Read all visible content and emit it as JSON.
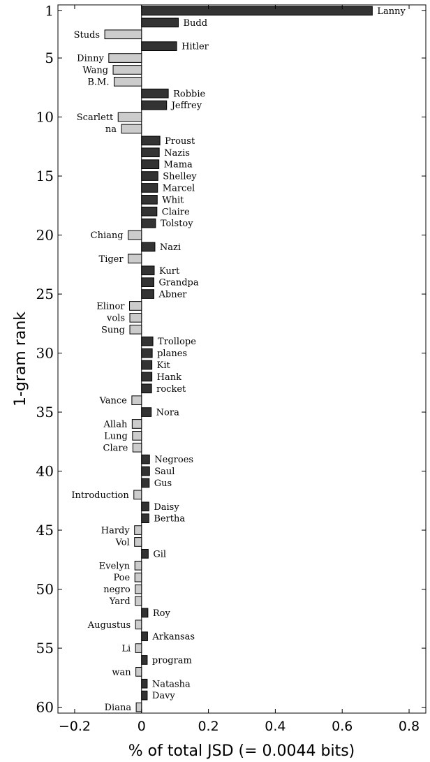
{
  "chart_data": {
    "type": "bar",
    "orientation": "horizontal",
    "xlabel": "% of total JSD (= 0.0044 bits)",
    "ylabel": "1-gram rank",
    "xlim": [
      -0.25,
      0.85
    ],
    "ylim": [
      0.5,
      60.5
    ],
    "x_ticks": [
      -0.2,
      0,
      0.2,
      0.4,
      0.6,
      0.8
    ],
    "x_tick_labels": [
      "−0.2",
      "0",
      "0.2",
      "0.4",
      "0.6",
      "0.8"
    ],
    "y_ticks": [
      1,
      5,
      10,
      15,
      20,
      25,
      30,
      35,
      40,
      45,
      50,
      55,
      60
    ],
    "y_tick_labels": [
      "1",
      "5",
      "10",
      "15",
      "20",
      "25",
      "30",
      "35",
      "40",
      "45",
      "50",
      "55",
      "60"
    ],
    "grid": false,
    "colors": {
      "positive": "#333333",
      "negative": "#cccccc",
      "edge": "#000000"
    },
    "bars": [
      {
        "rank": 1,
        "label": "Lanny",
        "value": 0.69
      },
      {
        "rank": 2,
        "label": "Budd",
        "value": 0.11
      },
      {
        "rank": 3,
        "label": "Studs",
        "value": -0.11
      },
      {
        "rank": 4,
        "label": "Hitler",
        "value": 0.105
      },
      {
        "rank": 5,
        "label": "Dinny",
        "value": -0.098
      },
      {
        "rank": 6,
        "label": "Wang",
        "value": -0.085
      },
      {
        "rank": 7,
        "label": "B.M.",
        "value": -0.082
      },
      {
        "rank": 8,
        "label": "Robbie",
        "value": 0.08
      },
      {
        "rank": 9,
        "label": "Jeffrey",
        "value": 0.075
      },
      {
        "rank": 10,
        "label": "Scarlett",
        "value": -0.07
      },
      {
        "rank": 11,
        "label": "na",
        "value": -0.06
      },
      {
        "rank": 12,
        "label": "Proust",
        "value": 0.055
      },
      {
        "rank": 13,
        "label": "Nazis",
        "value": 0.053
      },
      {
        "rank": 14,
        "label": "Mama",
        "value": 0.052
      },
      {
        "rank": 15,
        "label": "Shelley",
        "value": 0.049
      },
      {
        "rank": 16,
        "label": "Marcel",
        "value": 0.048
      },
      {
        "rank": 17,
        "label": "Whit",
        "value": 0.047
      },
      {
        "rank": 18,
        "label": "Claire",
        "value": 0.046
      },
      {
        "rank": 19,
        "label": "Tolstoy",
        "value": 0.042
      },
      {
        "rank": 20,
        "label": "Chiang",
        "value": -0.04
      },
      {
        "rank": 21,
        "label": "Nazi",
        "value": 0.04
      },
      {
        "rank": 22,
        "label": "Tiger",
        "value": -0.04
      },
      {
        "rank": 23,
        "label": "Kurt",
        "value": 0.038
      },
      {
        "rank": 24,
        "label": "Grandpa",
        "value": 0.037
      },
      {
        "rank": 25,
        "label": "Abner",
        "value": 0.037
      },
      {
        "rank": 26,
        "label": "Elinor",
        "value": -0.036
      },
      {
        "rank": 27,
        "label": "vols",
        "value": -0.035
      },
      {
        "rank": 28,
        "label": "Sung",
        "value": -0.035
      },
      {
        "rank": 29,
        "label": "Trollope",
        "value": 0.034
      },
      {
        "rank": 30,
        "label": "planes",
        "value": 0.032
      },
      {
        "rank": 31,
        "label": "Kit",
        "value": 0.031
      },
      {
        "rank": 32,
        "label": "Hank",
        "value": 0.031
      },
      {
        "rank": 33,
        "label": "rocket",
        "value": 0.03
      },
      {
        "rank": 34,
        "label": "Vance",
        "value": -0.029
      },
      {
        "rank": 35,
        "label": "Nora",
        "value": 0.029
      },
      {
        "rank": 36,
        "label": "Allah",
        "value": -0.028
      },
      {
        "rank": 37,
        "label": "Lung",
        "value": -0.027
      },
      {
        "rank": 38,
        "label": "Clare",
        "value": -0.026
      },
      {
        "rank": 39,
        "label": "Negroes",
        "value": 0.024
      },
      {
        "rank": 40,
        "label": "Saul",
        "value": 0.024
      },
      {
        "rank": 41,
        "label": "Gus",
        "value": 0.023
      },
      {
        "rank": 42,
        "label": "Introduction",
        "value": -0.023
      },
      {
        "rank": 43,
        "label": "Daisy",
        "value": 0.022
      },
      {
        "rank": 44,
        "label": "Bertha",
        "value": 0.022
      },
      {
        "rank": 45,
        "label": "Hardy",
        "value": -0.021
      },
      {
        "rank": 46,
        "label": "Vol",
        "value": -0.021
      },
      {
        "rank": 47,
        "label": "Gil",
        "value": 0.02
      },
      {
        "rank": 48,
        "label": "Evelyn",
        "value": -0.02
      },
      {
        "rank": 49,
        "label": "Poe",
        "value": -0.02
      },
      {
        "rank": 50,
        "label": "negro",
        "value": -0.019
      },
      {
        "rank": 51,
        "label": "Yard",
        "value": -0.019
      },
      {
        "rank": 52,
        "label": "Roy",
        "value": 0.019
      },
      {
        "rank": 53,
        "label": "Augustus",
        "value": -0.018
      },
      {
        "rank": 54,
        "label": "Arkansas",
        "value": 0.018
      },
      {
        "rank": 55,
        "label": "Li",
        "value": -0.018
      },
      {
        "rank": 56,
        "label": "program",
        "value": 0.017
      },
      {
        "rank": 57,
        "label": "wan",
        "value": -0.017
      },
      {
        "rank": 58,
        "label": "Natasha",
        "value": 0.017
      },
      {
        "rank": 59,
        "label": "Davy",
        "value": 0.017
      },
      {
        "rank": 60,
        "label": "Diana",
        "value": -0.016
      }
    ]
  }
}
